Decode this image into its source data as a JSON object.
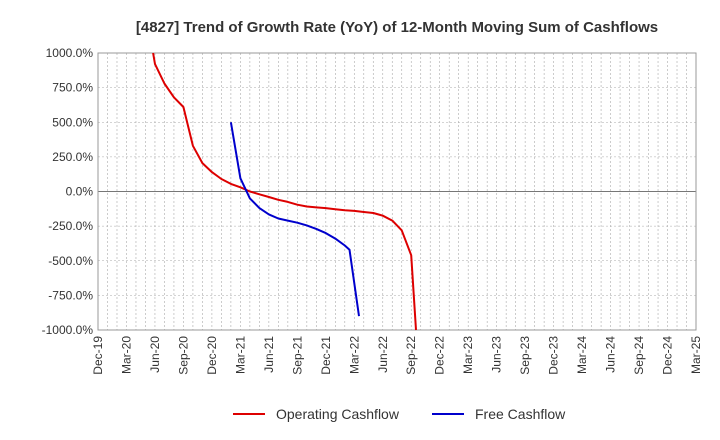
{
  "chart_data": {
    "type": "line",
    "title": "[4827]  Trend of Growth Rate (YoY) of 12-Month Moving Sum of Cashflows",
    "x_ticks": [
      "Dec-19",
      "Mar-20",
      "Jun-20",
      "Sep-20",
      "Dec-20",
      "Mar-21",
      "Jun-21",
      "Sep-21",
      "Dec-21",
      "Mar-22",
      "Jun-22",
      "Sep-22",
      "Dec-22",
      "Mar-23",
      "Jun-23",
      "Sep-23",
      "Dec-23",
      "Mar-24",
      "Jun-24",
      "Sep-24",
      "Dec-24",
      "Mar-25"
    ],
    "y_ticks": [
      "1000.0%",
      "750.0%",
      "500.0%",
      "250.0%",
      "0.0%",
      "-250.0%",
      "-500.0%",
      "-750.0%",
      "-1000.0%"
    ],
    "ylim": [
      -1000,
      1000
    ],
    "x_unit": "months since Dec-19",
    "grid": true,
    "legend_position": "bottom",
    "colors": {
      "operating": "#dd0000",
      "free": "#0000cc"
    },
    "series": [
      {
        "name": "Operating Cashflow",
        "color": "#dd0000",
        "points": [
          [
            5.8,
            1000
          ],
          [
            6,
            920
          ],
          [
            7,
            780
          ],
          [
            8,
            680
          ],
          [
            9,
            610
          ],
          [
            10,
            330
          ],
          [
            11,
            205
          ],
          [
            12,
            140
          ],
          [
            13,
            90
          ],
          [
            14,
            55
          ],
          [
            15,
            30
          ],
          [
            16,
            0
          ],
          [
            17,
            -20
          ],
          [
            18,
            -40
          ],
          [
            19,
            -60
          ],
          [
            20,
            -75
          ],
          [
            21,
            -95
          ],
          [
            22,
            -108
          ],
          [
            23,
            -115
          ],
          [
            24,
            -120
          ],
          [
            25,
            -128
          ],
          [
            26,
            -135
          ],
          [
            27,
            -140
          ],
          [
            28,
            -148
          ],
          [
            29,
            -155
          ],
          [
            30,
            -175
          ],
          [
            31,
            -210
          ],
          [
            32,
            -280
          ],
          [
            33,
            -460
          ],
          [
            33.5,
            -1000
          ]
        ]
      },
      {
        "name": "Free Cashflow",
        "color": "#0000cc",
        "points": [
          [
            14,
            500
          ],
          [
            15,
            95
          ],
          [
            16,
            -50
          ],
          [
            17,
            -120
          ],
          [
            18,
            -165
          ],
          [
            19,
            -195
          ],
          [
            20,
            -210
          ],
          [
            21,
            -225
          ],
          [
            22,
            -245
          ],
          [
            23,
            -270
          ],
          [
            24,
            -300
          ],
          [
            25,
            -340
          ],
          [
            26,
            -390
          ],
          [
            26.5,
            -420
          ],
          [
            27.5,
            -900
          ]
        ]
      }
    ]
  }
}
